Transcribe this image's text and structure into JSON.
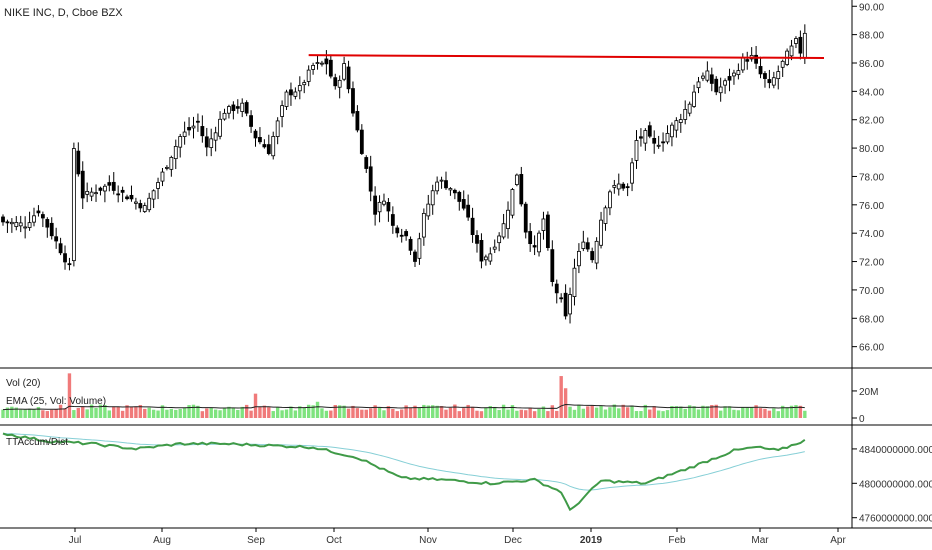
{
  "chart_data": {
    "type": "candlestick",
    "title": "NIKE INC, D, Cboe BZX",
    "colors": {
      "up_fill": "#ffffff",
      "down_fill": "#000000",
      "candle_stroke": "#000000",
      "vol_up": "#7fe37f",
      "vol_down": "#f07a7a",
      "resistance": "#e00000",
      "accum_line": "#3f9a47",
      "accum_ma": "#86cfd6",
      "ema": "#222222",
      "axis": "#000000"
    },
    "price_axis": {
      "ticks": [
        "90.00",
        "88.00",
        "86.00",
        "84.00",
        "82.00",
        "80.00",
        "78.00",
        "76.00",
        "74.00",
        "72.00",
        "70.00",
        "68.00",
        "66.00"
      ],
      "min": 65.2,
      "max": 90.3
    },
    "volume_axis": {
      "ticks": [
        "20M",
        "0"
      ],
      "max": 34
    },
    "accum_axis": {
      "ticks": [
        "4840000000.000",
        "4800000000.000",
        "4760000000.000"
      ],
      "min": 4755,
      "max": 4862
    },
    "x_labels": [
      "Jul",
      "Aug",
      "Sep",
      "Oct",
      "Nov",
      "Dec",
      "2019",
      "Feb",
      "Mar",
      "Apr"
    ],
    "x_label_bold": "2019",
    "resistance_level": 86.4,
    "price_anchors": [
      {
        "i": 0,
        "c": 74.8
      },
      {
        "i": 5,
        "c": 74.6
      },
      {
        "i": 8,
        "c": 75.6
      },
      {
        "i": 12,
        "c": 73.4
      },
      {
        "i": 15,
        "c": 71.6
      },
      {
        "i": 16,
        "c": 80
      },
      {
        "i": 18,
        "c": 76.6
      },
      {
        "i": 24,
        "c": 77.4
      },
      {
        "i": 28,
        "c": 76.6
      },
      {
        "i": 32,
        "c": 75.8
      },
      {
        "i": 36,
        "c": 78.2
      },
      {
        "i": 40,
        "c": 80.8
      },
      {
        "i": 44,
        "c": 81.8
      },
      {
        "i": 46,
        "c": 80
      },
      {
        "i": 50,
        "c": 82.6
      },
      {
        "i": 54,
        "c": 83
      },
      {
        "i": 57,
        "c": 80.8
      },
      {
        "i": 60,
        "c": 79.8
      },
      {
        "i": 64,
        "c": 83.8
      },
      {
        "i": 67,
        "c": 84.2
      },
      {
        "i": 70,
        "c": 85.8
      },
      {
        "i": 73,
        "c": 86
      },
      {
        "i": 75,
        "c": 84.2
      },
      {
        "i": 77,
        "c": 85.8
      },
      {
        "i": 79,
        "c": 82.6
      },
      {
        "i": 82,
        "c": 78.5
      },
      {
        "i": 84,
        "c": 75.5
      },
      {
        "i": 86,
        "c": 76.5
      },
      {
        "i": 88,
        "c": 74.5
      },
      {
        "i": 91,
        "c": 73.8
      },
      {
        "i": 93,
        "c": 72.2
      },
      {
        "i": 95,
        "c": 75.2
      },
      {
        "i": 98,
        "c": 77.8
      },
      {
        "i": 101,
        "c": 77.2
      },
      {
        "i": 104,
        "c": 75.8
      },
      {
        "i": 106,
        "c": 74
      },
      {
        "i": 108,
        "c": 72.2
      },
      {
        "i": 110,
        "c": 72.6
      },
      {
        "i": 113,
        "c": 74.6
      },
      {
        "i": 116,
        "c": 78.2
      },
      {
        "i": 118,
        "c": 74.2
      },
      {
        "i": 120,
        "c": 72.8
      },
      {
        "i": 122,
        "c": 75
      },
      {
        "i": 124,
        "c": 70.5
      },
      {
        "i": 126,
        "c": 69.2
      },
      {
        "i": 127,
        "c": 68
      },
      {
        "i": 129,
        "c": 71.5
      },
      {
        "i": 131,
        "c": 73.6
      },
      {
        "i": 133,
        "c": 72.2
      },
      {
        "i": 135,
        "c": 75
      },
      {
        "i": 137,
        "c": 77
      },
      {
        "i": 139,
        "c": 77.4
      },
      {
        "i": 141,
        "c": 77.2
      },
      {
        "i": 143,
        "c": 80.5
      },
      {
        "i": 145,
        "c": 81
      },
      {
        "i": 147,
        "c": 80.2
      },
      {
        "i": 149,
        "c": 80.6
      },
      {
        "i": 151,
        "c": 81.5
      },
      {
        "i": 153,
        "c": 82.2
      },
      {
        "i": 155,
        "c": 83.2
      },
      {
        "i": 157,
        "c": 84.8
      },
      {
        "i": 159,
        "c": 85.2
      },
      {
        "i": 161,
        "c": 84
      },
      {
        "i": 163,
        "c": 84.6
      },
      {
        "i": 165,
        "c": 85.2
      },
      {
        "i": 167,
        "c": 86.2
      },
      {
        "i": 169,
        "c": 86.4
      },
      {
        "i": 171,
        "c": 85.2
      },
      {
        "i": 173,
        "c": 84.4
      },
      {
        "i": 175,
        "c": 85.4
      },
      {
        "i": 177,
        "c": 86.6
      },
      {
        "i": 179,
        "c": 87.5
      },
      {
        "i": 180,
        "c": 86.8
      },
      {
        "i": 181,
        "c": 88.2
      }
    ],
    "accum_anchors": [
      {
        "i": 0,
        "v": 4858
      },
      {
        "i": 10,
        "v": 4849
      },
      {
        "i": 20,
        "v": 4846
      },
      {
        "i": 30,
        "v": 4840
      },
      {
        "i": 40,
        "v": 4846
      },
      {
        "i": 50,
        "v": 4846
      },
      {
        "i": 60,
        "v": 4844
      },
      {
        "i": 70,
        "v": 4842
      },
      {
        "i": 80,
        "v": 4830
      },
      {
        "i": 90,
        "v": 4806
      },
      {
        "i": 100,
        "v": 4804
      },
      {
        "i": 110,
        "v": 4800
      },
      {
        "i": 120,
        "v": 4804
      },
      {
        "i": 126,
        "v": 4790
      },
      {
        "i": 128,
        "v": 4768
      },
      {
        "i": 135,
        "v": 4803
      },
      {
        "i": 145,
        "v": 4800
      },
      {
        "i": 155,
        "v": 4818
      },
      {
        "i": 165,
        "v": 4838
      },
      {
        "i": 170,
        "v": 4842
      },
      {
        "i": 175,
        "v": 4838
      },
      {
        "i": 181,
        "v": 4850
      }
    ]
  }
}
